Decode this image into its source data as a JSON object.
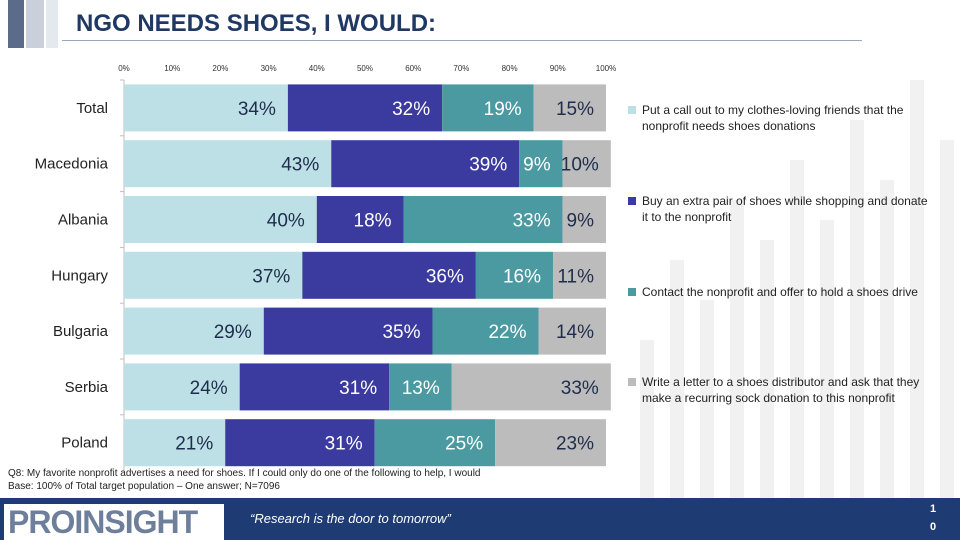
{
  "title": "NGO NEEDS SHOES, I WOULD:",
  "chart_data": {
    "type": "bar",
    "orientation": "horizontal",
    "stacked": true,
    "xlim": [
      0,
      100
    ],
    "x_ticks": [
      "0%",
      "10%",
      "20%",
      "30%",
      "40%",
      "50%",
      "60%",
      "70%",
      "80%",
      "90%",
      "100%"
    ],
    "categories": [
      "Total",
      "Macedonia",
      "Albania",
      "Hungary",
      "Bulgaria",
      "Serbia",
      "Poland"
    ],
    "series": [
      {
        "name": "Put a call out to my clothes-loving friends that the nonprofit needs shoes donations",
        "color": "#bde0e6",
        "values": [
          34,
          43,
          40,
          37,
          29,
          24,
          21
        ],
        "labels": [
          "34%",
          "43%",
          "40%",
          "37%",
          "29%",
          "24%",
          "21%"
        ]
      },
      {
        "name": "Buy an extra pair of shoes while shopping and donate it to the nonprofit",
        "color": "#3b3a9e",
        "values": [
          32,
          39,
          18,
          36,
          35,
          31,
          31
        ],
        "labels": [
          "32%",
          "39%",
          "18%",
          "36%",
          "35%",
          "31%",
          "31%"
        ]
      },
      {
        "name": "Contact the nonprofit and offer to hold a shoes drive",
        "color": "#4b9aa2",
        "values": [
          19,
          9,
          33,
          16,
          22,
          13,
          25
        ],
        "labels": [
          "19%",
          "9%",
          "33%",
          "16%",
          "22%",
          "13%",
          "25%"
        ]
      },
      {
        "name": "Write a letter to a shoes distributor and ask that they make a recurring sock donation to this nonprofit",
        "color": "#bcbcbc",
        "values": [
          15,
          10,
          9,
          11,
          14,
          33,
          23
        ],
        "labels": [
          "15%",
          "10%",
          "9%",
          "11%",
          "14%",
          "33%",
          "23%"
        ]
      }
    ],
    "legend_position": "right"
  },
  "footnote": {
    "line1": "Q8: My favorite nonprofit advertises a need for shoes. If I could only do one of the following to help, I would",
    "line2": "Base: 100% of Total target population – One answer; N=7096"
  },
  "footer": {
    "logo_text": "PROINSIGHT",
    "tagline": "“Research is the door to tomorrow”",
    "page_line1": "1",
    "page_line2": "0",
    "bg_color": "#1f3b73"
  }
}
